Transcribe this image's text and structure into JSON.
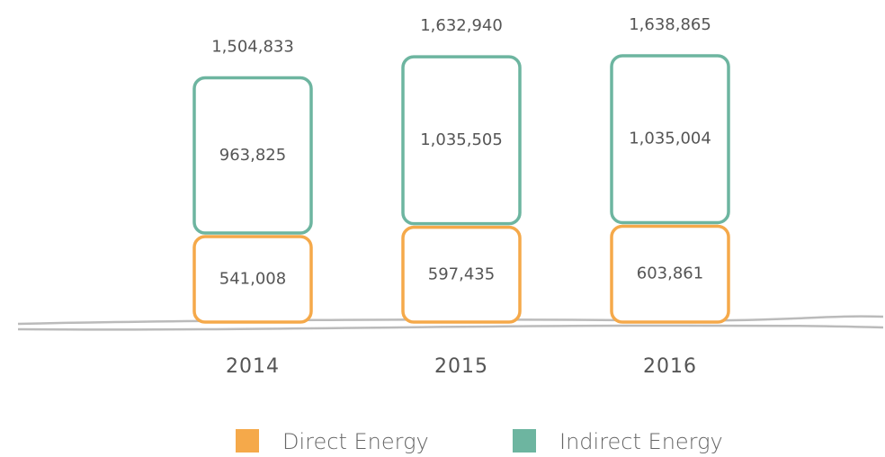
{
  "chart_data": {
    "type": "bar",
    "stacked": true,
    "categories": [
      "2014",
      "2015",
      "2016"
    ],
    "series": [
      {
        "name": "Direct Energy",
        "color": "#f5a94a",
        "values": [
          541008,
          597435,
          603861
        ],
        "value_labels": [
          "541,008",
          "597,435",
          "603,861"
        ]
      },
      {
        "name": "Indirect Energy",
        "color": "#6db5a0",
        "values": [
          963825,
          1035505,
          1035004
        ],
        "value_labels": [
          "963,825",
          "1,035,505",
          "1,035,004"
        ]
      }
    ],
    "totals": [
      1504833,
      1632940,
      1638865
    ],
    "total_labels": [
      "1,504,833",
      "1,632,940",
      "1,638,865"
    ]
  }
}
